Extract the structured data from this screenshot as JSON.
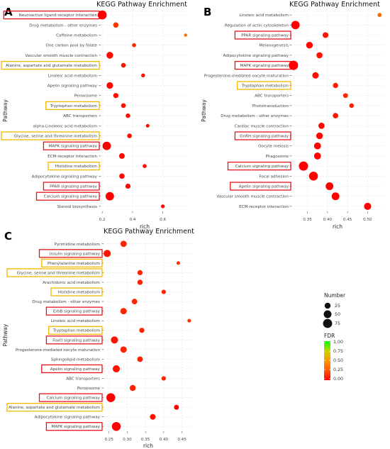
{
  "highlight_colors": {
    "red": "#e5141c",
    "yellow": "#f1b800"
  },
  "fdr_colors": [
    "#ff0000",
    "#ff5a00",
    "#ff9600",
    "#c8d400",
    "#00ff00"
  ],
  "legend": {
    "size_title": "Number",
    "size_values": [
      25,
      50,
      75
    ],
    "color_title": "FDR",
    "color_ticks": [
      "1.00",
      "0.75",
      "0.50",
      "0.25",
      "0.00"
    ]
  },
  "chart_data": [
    {
      "type": "scatter",
      "panel": "A",
      "title": "KEGG Pathway Enrichment",
      "xlabel": "rich",
      "ylabel": "Pathway",
      "xlim": [
        0.19,
        0.77
      ],
      "xticks": [
        "0.2",
        "0.4",
        "0.6"
      ],
      "xtick_values": [
        0.2,
        0.4,
        0.6
      ],
      "points": [
        {
          "pathway": "Neuroactive ligand-receptor interaction",
          "rich": 0.2,
          "number": 72,
          "fdr": 0.0,
          "box": "red"
        },
        {
          "pathway": "Drug metabolism - other enzymes",
          "rich": 0.29,
          "number": 18,
          "fdr": 0.15,
          "box": ""
        },
        {
          "pathway": "Caffeine metabolism",
          "rich": 0.75,
          "number": 3,
          "fdr": 0.35,
          "box": ""
        },
        {
          "pathway": "One carbon pool by folate",
          "rich": 0.41,
          "number": 7,
          "fdr": 0.1,
          "box": ""
        },
        {
          "pathway": "Vascular smooth muscle contraction",
          "rich": 0.25,
          "number": 34,
          "fdr": 0.03,
          "box": ""
        },
        {
          "pathway": "Alanine, aspartate and glutamate metabolism",
          "rich": 0.34,
          "number": 12,
          "fdr": 0.05,
          "box": "yellow"
        },
        {
          "pathway": "Linoleic acid metabolism",
          "rich": 0.47,
          "number": 7,
          "fdr": 0.05,
          "box": ""
        },
        {
          "pathway": "Apelin signaling pathway",
          "rich": 0.25,
          "number": 32,
          "fdr": 0.02,
          "box": ""
        },
        {
          "pathway": "Peroxisome",
          "rich": 0.29,
          "number": 16,
          "fdr": 0.03,
          "box": ""
        },
        {
          "pathway": "Tryptophan metabolism",
          "rich": 0.34,
          "number": 13,
          "fdr": 0.04,
          "box": "yellow"
        },
        {
          "pathway": "ABC transporters",
          "rich": 0.37,
          "number": 11,
          "fdr": 0.04,
          "box": ""
        },
        {
          "pathway": "alpha-Linolenic acid metabolism",
          "rich": 0.5,
          "number": 5,
          "fdr": 0.04,
          "box": ""
        },
        {
          "pathway": "Glycine, serine and threonine metabolism",
          "rich": 0.38,
          "number": 12,
          "fdr": 0.04,
          "box": "yellow"
        },
        {
          "pathway": "MAPK signaling pathway",
          "rich": 0.23,
          "number": 62,
          "fdr": 0.0,
          "box": "red"
        },
        {
          "pathway": "ECM-receptor interaction",
          "rich": 0.33,
          "number": 21,
          "fdr": 0.02,
          "box": ""
        },
        {
          "pathway": "Histidine metabolism",
          "rich": 0.48,
          "number": 7,
          "fdr": 0.05,
          "box": "yellow"
        },
        {
          "pathway": "Adipocytokine signaling pathway",
          "rich": 0.33,
          "number": 18,
          "fdr": 0.02,
          "box": ""
        },
        {
          "pathway": "PPAR signaling pathway",
          "rich": 0.37,
          "number": 16,
          "fdr": 0.02,
          "box": "red"
        },
        {
          "pathway": "Calcium signaling pathway",
          "rich": 0.25,
          "number": 62,
          "fdr": 0.0,
          "box": "red"
        },
        {
          "pathway": "Steroid biosynthesis",
          "rich": 0.6,
          "number": 6,
          "fdr": 0.02,
          "box": ""
        }
      ]
    },
    {
      "type": "scatter",
      "panel": "B",
      "title": "KEGG Pathway Enrichment",
      "xlabel": "rich",
      "ylabel": "Pathway",
      "xlim": [
        0.31,
        0.54
      ],
      "xticks": [
        "0.35",
        "0.40",
        "0.45",
        "0.50"
      ],
      "xtick_values": [
        0.35,
        0.4,
        0.45,
        0.5
      ],
      "points": [
        {
          "pathway": "Linoleic acid metabolism",
          "rich": 0.53,
          "number": 8,
          "fdr": 0.3,
          "box": ""
        },
        {
          "pathway": "Regulation of actin cytoskeleton",
          "rich": 0.32,
          "number": 62,
          "fdr": 0.0,
          "box": ""
        },
        {
          "pathway": "PPAR signaling pathway",
          "rich": 0.395,
          "number": 22,
          "fdr": 0.05,
          "box": "red"
        },
        {
          "pathway": "Melanogenesis",
          "rich": 0.355,
          "number": 34,
          "fdr": 0.02,
          "box": ""
        },
        {
          "pathway": "Adipocytokine signaling pathway",
          "rich": 0.38,
          "number": 27,
          "fdr": 0.05,
          "box": ""
        },
        {
          "pathway": "MAPK signaling pathway",
          "rich": 0.315,
          "number": 80,
          "fdr": 0.0,
          "box": "red"
        },
        {
          "pathway": "Progesterone-mediated oocyte maturation",
          "rich": 0.37,
          "number": 30,
          "fdr": 0.04,
          "box": ""
        },
        {
          "pathway": "Tryptophan metabolism",
          "rich": 0.42,
          "number": 17,
          "fdr": 0.08,
          "box": "yellow"
        },
        {
          "pathway": "ABC transporters",
          "rich": 0.445,
          "number": 13,
          "fdr": 0.1,
          "box": ""
        },
        {
          "pathway": "Phototransduction",
          "rich": 0.46,
          "number": 12,
          "fdr": 0.1,
          "box": ""
        },
        {
          "pathway": "Drug metabolism - other enzymes",
          "rich": 0.42,
          "number": 19,
          "fdr": 0.05,
          "box": ""
        },
        {
          "pathway": "Cardiac muscle contraction",
          "rich": 0.385,
          "number": 28,
          "fdr": 0.02,
          "box": ""
        },
        {
          "pathway": "GnRH signaling pathway",
          "rich": 0.38,
          "number": 33,
          "fdr": 0.02,
          "box": "red"
        },
        {
          "pathway": "Oocyte meiosis",
          "rich": 0.375,
          "number": 37,
          "fdr": 0.02,
          "box": ""
        },
        {
          "pathway": "Phagosome",
          "rich": 0.375,
          "number": 38,
          "fdr": 0.02,
          "box": ""
        },
        {
          "pathway": "Calcium signaling pathway",
          "rich": 0.34,
          "number": 78,
          "fdr": 0.0,
          "box": "red"
        },
        {
          "pathway": "Focal adhesion",
          "rich": 0.365,
          "number": 70,
          "fdr": 0.0,
          "box": ""
        },
        {
          "pathway": "Apelin signaling pathway",
          "rich": 0.405,
          "number": 50,
          "fdr": 0.0,
          "box": "red"
        },
        {
          "pathway": "Vascular smooth muscle contraction",
          "rich": 0.42,
          "number": 50,
          "fdr": 0.0,
          "box": ""
        },
        {
          "pathway": "ECM-receptor interaction",
          "rich": 0.5,
          "number": 40,
          "fdr": 0.0,
          "box": ""
        }
      ]
    },
    {
      "type": "scatter",
      "panel": "C",
      "title": "KEGG Pathway Enrichment",
      "xlabel": "rich",
      "ylabel": "Pathway",
      "xlim": [
        0.235,
        0.48
      ],
      "xticks": [
        "0.25",
        "0.30",
        "0.35",
        "0.40",
        "0.45"
      ],
      "xtick_values": [
        0.25,
        0.3,
        0.35,
        0.4,
        0.45
      ],
      "points": [
        {
          "pathway": "Pyrimidine metabolism",
          "rich": 0.29,
          "number": 28,
          "fdr": 0.1,
          "box": ""
        },
        {
          "pathway": "Insulin signaling pathway",
          "rich": 0.245,
          "number": 40,
          "fdr": 0.05,
          "box": "red"
        },
        {
          "pathway": "Phenylalanine metabolism",
          "rich": 0.44,
          "number": 5,
          "fdr": 0.15,
          "box": "yellow"
        },
        {
          "pathway": "Glycine, serine and threonine metabolism",
          "rich": 0.335,
          "number": 16,
          "fdr": 0.1,
          "box": "yellow"
        },
        {
          "pathway": "Arachidonic acid metabolism",
          "rich": 0.335,
          "number": 17,
          "fdr": 0.1,
          "box": ""
        },
        {
          "pathway": "Histidine metabolism",
          "rich": 0.4,
          "number": 10,
          "fdr": 0.1,
          "box": "yellow"
        },
        {
          "pathway": "Drug metabolism - other enzymes",
          "rich": 0.32,
          "number": 20,
          "fdr": 0.1,
          "box": ""
        },
        {
          "pathway": "ErbB signaling pathway",
          "rich": 0.29,
          "number": 30,
          "fdr": 0.1,
          "box": "red"
        },
        {
          "pathway": "Linoleic acid metabolism",
          "rich": 0.47,
          "number": 5,
          "fdr": 0.15,
          "box": ""
        },
        {
          "pathway": "Tryptophan metabolism",
          "rich": 0.34,
          "number": 16,
          "fdr": 0.1,
          "box": "yellow"
        },
        {
          "pathway": "FoxO signaling pathway",
          "rich": 0.265,
          "number": 40,
          "fdr": 0.05,
          "box": "red"
        },
        {
          "pathway": "Progesterone-mediated oocyte maturation",
          "rich": 0.29,
          "number": 30,
          "fdr": 0.1,
          "box": ""
        },
        {
          "pathway": "Sphingolipid metabolism",
          "rich": 0.335,
          "number": 20,
          "fdr": 0.1,
          "box": ""
        },
        {
          "pathway": "Apelin signaling pathway",
          "rich": 0.27,
          "number": 40,
          "fdr": 0.05,
          "box": "red"
        },
        {
          "pathway": "ABC transporters",
          "rich": 0.4,
          "number": 10,
          "fdr": 0.1,
          "box": ""
        },
        {
          "pathway": "Peroxisome",
          "rich": 0.315,
          "number": 25,
          "fdr": 0.1,
          "box": ""
        },
        {
          "pathway": "Calcium signaling pathway",
          "rich": 0.255,
          "number": 70,
          "fdr": 0.0,
          "box": "red"
        },
        {
          "pathway": "Alanine, aspartate and glutamate metabolism",
          "rich": 0.435,
          "number": 14,
          "fdr": 0.0,
          "box": "yellow"
        },
        {
          "pathway": "Adipocytokine signaling pathway",
          "rich": 0.37,
          "number": 22,
          "fdr": 0.05,
          "box": ""
        },
        {
          "pathway": "MAPK signaling pathway",
          "rich": 0.27,
          "number": 70,
          "fdr": 0.0,
          "box": "red"
        }
      ]
    }
  ]
}
